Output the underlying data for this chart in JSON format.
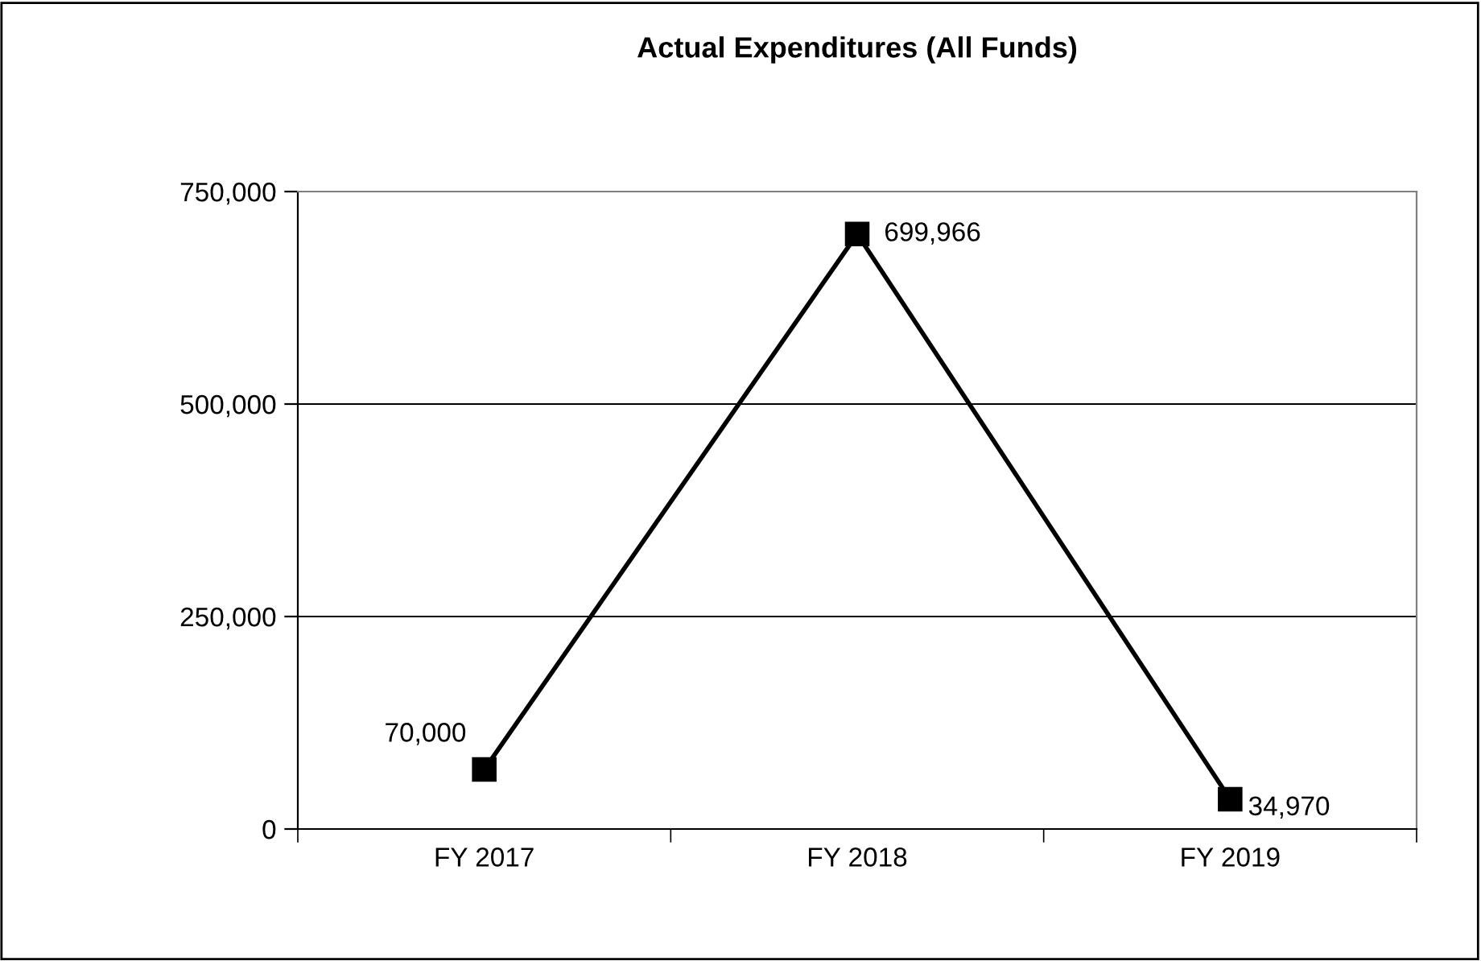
{
  "chart_data": {
    "type": "line",
    "title": "Actual Expenditures (All Funds)",
    "categories": [
      "FY 2017",
      "FY 2018",
      "FY 2019"
    ],
    "series": [
      {
        "color": "#000000",
        "values": [
          70000,
          699966,
          34970
        ],
        "value_labels": [
          "70,000",
          "699,966",
          "34,970"
        ]
      }
    ],
    "ylim": [
      0,
      750000
    ],
    "yticks": [
      {
        "value": 0,
        "label": "0"
      },
      {
        "value": 250000,
        "label": "250,000"
      },
      {
        "value": 500000,
        "label": "500,000"
      },
      {
        "value": 750000,
        "label": "750,000"
      }
    ],
    "grid": "y",
    "marker": "square",
    "line_style": "solid"
  }
}
